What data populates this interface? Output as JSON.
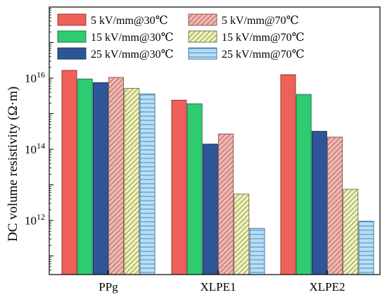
{
  "chart_data": {
    "type": "bar",
    "title": "",
    "xlabel": "",
    "ylabel": "DC volume resistivity (Ω·m)",
    "yscale": "log",
    "ylim": [
      30000000000.0,
      1e+18
    ],
    "categories": [
      "PPg",
      "XLPE1",
      "XLPE2"
    ],
    "y_tick_labels": [
      {
        "value": 1000000000000.0,
        "label": "10",
        "exp": "12"
      },
      {
        "value": 100000000000000.0,
        "label": "10",
        "exp": "14"
      },
      {
        "value": 1e+16,
        "label": "10",
        "exp": "16"
      }
    ],
    "legend_position": "top",
    "series": [
      {
        "name": "5 kV/mm@30℃",
        "color": "#f0605a",
        "pattern": "solid",
        "values": [
          1.65e+16,
          2400000000000000.0,
          1.25e+16
        ]
      },
      {
        "name": "15 kV/mm@30℃",
        "color": "#2ecc71",
        "pattern": "solid",
        "values": [
          9500000000000000.0,
          1900000000000000.0,
          3500000000000000.0
        ]
      },
      {
        "name": "25 kV/mm@30℃",
        "color": "#2e5597",
        "pattern": "solid",
        "values": [
          7500000000000000.0,
          140000000000000.0,
          320000000000000.0
        ]
      },
      {
        "name": "5 kV/mm@70℃",
        "color": "#f2b6b0",
        "pattern": "hatch",
        "values": [
          1.05e+16,
          270000000000000.0,
          220000000000000.0
        ]
      },
      {
        "name": "15 kV/mm@70℃",
        "color": "#eef2b8",
        "pattern": "hatch",
        "values": [
          5200000000000000.0,
          5500000000000.0,
          7500000000000.0
        ]
      },
      {
        "name": "25 kV/mm@70℃",
        "color": "#b8def7",
        "pattern": "hlines",
        "values": [
          3600000000000000.0,
          600000000000.0,
          950000000000.0
        ]
      }
    ]
  }
}
